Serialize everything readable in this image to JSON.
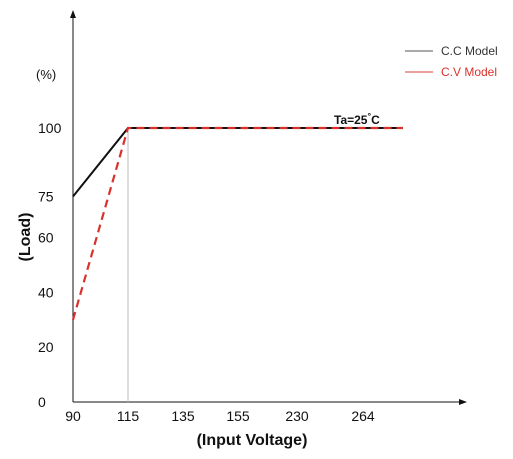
{
  "chart_data": {
    "type": "line",
    "xlabel": "(Input Voltage)",
    "ylabel": "(Load)",
    "y_unit": "(%)",
    "categories": [
      "90",
      "115",
      "135",
      "155",
      "230",
      "264"
    ],
    "y_ticks": [
      "0",
      "20",
      "40",
      "60",
      "75",
      "100"
    ],
    "ylim": [
      0,
      100
    ],
    "series": [
      {
        "name": "C.C Model",
        "color": "#111111",
        "style": "solid",
        "points": [
          {
            "x": "90",
            "y": 75
          },
          {
            "x": "115",
            "y": 100
          },
          {
            "x": "264",
            "y": 100
          }
        ],
        "extends_past_last_category": true
      },
      {
        "name": "C.V Model",
        "color": "#d9312b",
        "style": "dashed",
        "points": [
          {
            "x": "90",
            "y": 30
          },
          {
            "x": "115",
            "y": 100
          },
          {
            "x": "264",
            "y": 100
          }
        ],
        "extends_past_last_category": true
      }
    ],
    "legend_placement": "top-right",
    "annotation": {
      "text": "Ta=25",
      "superscript": "°",
      "suffix": "C"
    },
    "legend_colors": {
      "cc": "#777777",
      "cv": "#e06666"
    },
    "grid": false
  }
}
